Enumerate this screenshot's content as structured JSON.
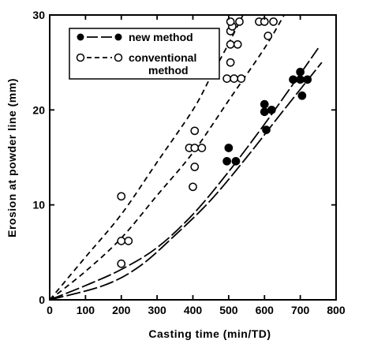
{
  "chart_data": {
    "type": "scatter",
    "title": "",
    "xlabel": "Casting time    (min/TD)",
    "ylabel": "Erosion at powder line    (mm)",
    "xlim": [
      0,
      800
    ],
    "ylim": [
      0,
      30
    ],
    "xticks": [
      0,
      100,
      200,
      300,
      400,
      500,
      600,
      700,
      800
    ],
    "yticks": [
      0,
      10,
      20,
      30
    ],
    "grid": false,
    "legend": {
      "placement": "top-left",
      "entries": [
        {
          "label": "new method",
          "marker": "filled-circle",
          "line": "long-dash"
        },
        {
          "label": "conventional",
          "label_line2": "method",
          "marker": "open-circle",
          "line": "short-dash"
        }
      ]
    },
    "series": [
      {
        "name": "new method",
        "marker": "filled-circle",
        "points": [
          [
            500,
            16.0
          ],
          [
            495,
            14.6
          ],
          [
            520,
            14.6
          ],
          [
            600,
            20.6
          ],
          [
            600,
            19.8
          ],
          [
            620,
            20.0
          ],
          [
            605,
            17.9
          ],
          [
            680,
            23.2
          ],
          [
            700,
            23.2
          ],
          [
            720,
            23.2
          ],
          [
            700,
            24.0
          ],
          [
            705,
            21.5
          ]
        ],
        "curves": [
          {
            "style": "long-dash",
            "points": [
              [
                0,
                0
              ],
              [
                100,
                1.5
              ],
              [
                200,
                3.2
              ],
              [
                300,
                5.5
              ],
              [
                400,
                9.0
              ],
              [
                500,
                13.5
              ],
              [
                600,
                18.5
              ],
              [
                700,
                23.8
              ],
              [
                750,
                26.5
              ]
            ]
          },
          {
            "style": "long-dash",
            "points": [
              [
                0,
                0
              ],
              [
                150,
                1.5
              ],
              [
                250,
                3.5
              ],
              [
                350,
                6.8
              ],
              [
                450,
                10.5
              ],
              [
                550,
                15.0
              ],
              [
                650,
                19.8
              ],
              [
                760,
                25.0
              ]
            ]
          }
        ]
      },
      {
        "name": "conventional method",
        "marker": "open-circle",
        "points": [
          [
            200,
            10.9
          ],
          [
            200,
            6.2
          ],
          [
            220,
            6.2
          ],
          [
            200,
            3.8
          ],
          [
            390,
            16.0
          ],
          [
            405,
            16.0
          ],
          [
            425,
            16.0
          ],
          [
            405,
            17.8
          ],
          [
            405,
            14.0
          ],
          [
            400,
            11.9
          ],
          [
            495,
            23.3
          ],
          [
            515,
            23.3
          ],
          [
            535,
            23.3
          ],
          [
            505,
            25.0
          ],
          [
            505,
            26.9
          ],
          [
            525,
            26.9
          ],
          [
            505,
            28.3
          ],
          [
            510,
            28.8
          ],
          [
            505,
            29.3
          ],
          [
            530,
            29.3
          ],
          [
            585,
            29.3
          ],
          [
            600,
            29.3
          ],
          [
            625,
            29.3
          ],
          [
            610,
            27.8
          ]
        ],
        "curves": [
          {
            "style": "short-dash",
            "points": [
              [
                0,
                0
              ],
              [
                100,
                4.5
              ],
              [
                200,
                9.0
              ],
              [
                300,
                14.5
              ],
              [
                400,
                20.0
              ],
              [
                450,
                23.5
              ],
              [
                500,
                27.0
              ],
              [
                540,
                30.0
              ]
            ]
          },
          {
            "style": "short-dash",
            "points": [
              [
                0,
                0
              ],
              [
                100,
                3.0
              ],
              [
                200,
                6.5
              ],
              [
                300,
                11.0
              ],
              [
                400,
                15.5
              ],
              [
                500,
                21.0
              ],
              [
                600,
                26.5
              ],
              [
                655,
                30.0
              ]
            ]
          }
        ]
      }
    ]
  }
}
